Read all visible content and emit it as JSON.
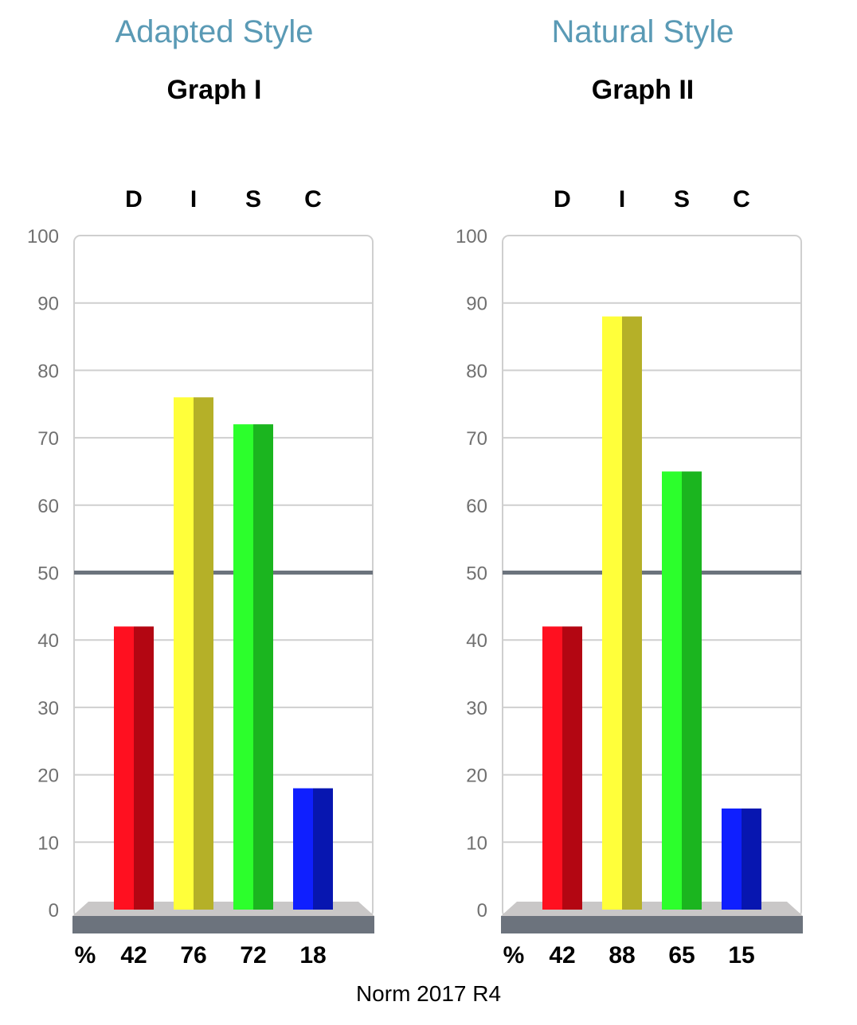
{
  "footer": "Norm 2017 R4",
  "colors": {
    "style_title": "#5a9ab5",
    "midline": "#6c737d",
    "base": "#6c737d",
    "base_top": "#c9c7c7",
    "grid": "#cfcfcf",
    "D_light": "#ff1020",
    "D_dark": "#b30612",
    "I_light": "#ffff3a",
    "I_dark": "#b5b028",
    "S_light": "#2cff2c",
    "S_dark": "#1bb51f",
    "C_light": "#0f1fff",
    "C_dark": "#0716b0"
  },
  "chart_data": [
    {
      "type": "bar",
      "style_title": "Adapted Style",
      "title": "Graph I",
      "categories": [
        "D",
        "I",
        "S",
        "C"
      ],
      "values": [
        42,
        76,
        72,
        18
      ],
      "value_labels": [
        "42",
        "76",
        "72",
        "18"
      ],
      "percent_label": "%",
      "ylim": [
        0,
        100
      ],
      "yticks": [
        "0",
        "10",
        "20",
        "30",
        "40",
        "50",
        "60",
        "70",
        "80",
        "90",
        "100"
      ],
      "midline": 50,
      "grid": true
    },
    {
      "type": "bar",
      "style_title": "Natural Style",
      "title": "Graph II",
      "categories": [
        "D",
        "I",
        "S",
        "C"
      ],
      "values": [
        42,
        88,
        65,
        15
      ],
      "value_labels": [
        "42",
        "88",
        "65",
        "15"
      ],
      "percent_label": "%",
      "ylim": [
        0,
        100
      ],
      "yticks": [
        "0",
        "10",
        "20",
        "30",
        "40",
        "50",
        "60",
        "70",
        "80",
        "90",
        "100"
      ],
      "midline": 50,
      "grid": true
    }
  ]
}
